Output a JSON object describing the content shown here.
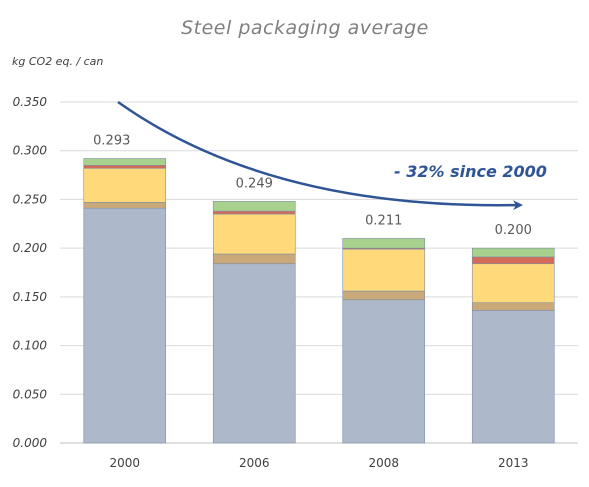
{
  "chart_data": {
    "type": "bar",
    "stacked": true,
    "title": "Steel packaging average",
    "ylabel": "kg CO2 eq. / can",
    "xlabel": "",
    "categories": [
      "2000",
      "2006",
      "2008",
      "2013"
    ],
    "ylim": [
      0,
      0.35
    ],
    "yticks": [
      "0.000",
      "0.050",
      "0.100",
      "0.150",
      "0.200",
      "0.250",
      "0.300",
      "0.350"
    ],
    "grid": true,
    "legend": "none",
    "totals": [
      "0.293",
      "0.249",
      "0.211",
      "0.200"
    ],
    "annotation": "- 32% since 2000",
    "series": [
      {
        "color": "#adb9ca",
        "values": [
          0.241,
          0.184,
          0.147,
          0.136
        ]
      },
      {
        "color": "#c9a97a",
        "values": [
          0.006,
          0.01,
          0.009,
          0.008
        ]
      },
      {
        "color": "#ffd97a",
        "values": [
          0.035,
          0.041,
          0.043,
          0.04
        ]
      },
      {
        "color": "#d36b57",
        "values": [
          0.003,
          0.003,
          0.001,
          0.007
        ]
      },
      {
        "color": "#a9d18e",
        "values": [
          0.007,
          0.01,
          0.01,
          0.009
        ]
      }
    ],
    "colors": {
      "axis": "#bfbfbf",
      "grid": "#d9d9d9",
      "arrow": "#2f5597",
      "bar_edge": "#7f8fa6"
    }
  }
}
